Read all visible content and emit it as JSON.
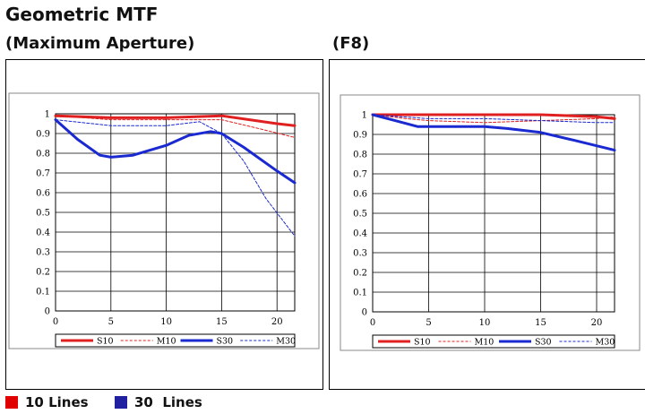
{
  "title": "Geometric MTF",
  "bottom_legend": [
    {
      "label": "10 Lines",
      "color": "#e00000"
    },
    {
      "label": "30  Lines",
      "color": "#2020a0"
    }
  ],
  "chart_data": [
    {
      "type": "line",
      "title": "(Maximum Aperture)",
      "xlim": [
        0,
        21.6
      ],
      "ylim": [
        0,
        1
      ],
      "xticks": [
        0,
        5,
        10,
        15,
        20
      ],
      "yticks": [
        0,
        0.1,
        0.2,
        0.3,
        0.4,
        0.5,
        0.6,
        0.7,
        0.8,
        0.9,
        1
      ],
      "grid": true,
      "legend_position": "bottom",
      "series": [
        {
          "name": "S10",
          "color": "#e02020",
          "style": "solid",
          "x": [
            0,
            5,
            10,
            15,
            20,
            21.6
          ],
          "y": [
            0.99,
            0.98,
            0.98,
            0.99,
            0.95,
            0.94
          ]
        },
        {
          "name": "M10",
          "color": "#e02020",
          "style": "dashed",
          "x": [
            0,
            5,
            10,
            15,
            18,
            21.6
          ],
          "y": [
            0.99,
            0.97,
            0.97,
            0.97,
            0.93,
            0.88
          ]
        },
        {
          "name": "S30",
          "color": "#1a2ad0",
          "style": "solid",
          "x": [
            0,
            2,
            4,
            5,
            7,
            10,
            12,
            14,
            15,
            17,
            20,
            21.6
          ],
          "y": [
            0.97,
            0.87,
            0.79,
            0.78,
            0.79,
            0.84,
            0.89,
            0.91,
            0.9,
            0.83,
            0.71,
            0.65
          ]
        },
        {
          "name": "M30",
          "color": "#1a2ad0",
          "style": "dashed",
          "x": [
            0,
            5,
            10,
            13,
            15,
            17,
            19,
            21.6
          ],
          "y": [
            0.97,
            0.94,
            0.94,
            0.96,
            0.9,
            0.76,
            0.57,
            0.38
          ]
        }
      ]
    },
    {
      "type": "line",
      "title": "(F8)",
      "xlim": [
        0,
        21.6
      ],
      "ylim": [
        0,
        1
      ],
      "xticks": [
        0,
        5,
        10,
        15,
        20
      ],
      "yticks": [
        0,
        0.1,
        0.2,
        0.3,
        0.4,
        0.5,
        0.6,
        0.7,
        0.8,
        0.9,
        1
      ],
      "grid": true,
      "legend_position": "bottom",
      "series": [
        {
          "name": "S10",
          "color": "#e02020",
          "style": "solid",
          "x": [
            0,
            5,
            10,
            15,
            20,
            21.6
          ],
          "y": [
            1.0,
            1.0,
            1.0,
            1.0,
            0.99,
            0.98
          ]
        },
        {
          "name": "M10",
          "color": "#e02020",
          "style": "dashed",
          "x": [
            0,
            3,
            5,
            10,
            15,
            20,
            21.6
          ],
          "y": [
            1.0,
            0.98,
            0.97,
            0.96,
            0.97,
            0.98,
            0.99
          ]
        },
        {
          "name": "S30",
          "color": "#1a2ad0",
          "style": "solid",
          "x": [
            0,
            2,
            4,
            5,
            7,
            10,
            12,
            15,
            18,
            21.6
          ],
          "y": [
            1.0,
            0.97,
            0.94,
            0.94,
            0.94,
            0.94,
            0.93,
            0.91,
            0.87,
            0.82
          ]
        },
        {
          "name": "M30",
          "color": "#1a2ad0",
          "style": "dashed",
          "x": [
            0,
            5,
            10,
            15,
            20,
            21.6
          ],
          "y": [
            1.0,
            0.98,
            0.98,
            0.97,
            0.96,
            0.96
          ]
        }
      ]
    }
  ]
}
